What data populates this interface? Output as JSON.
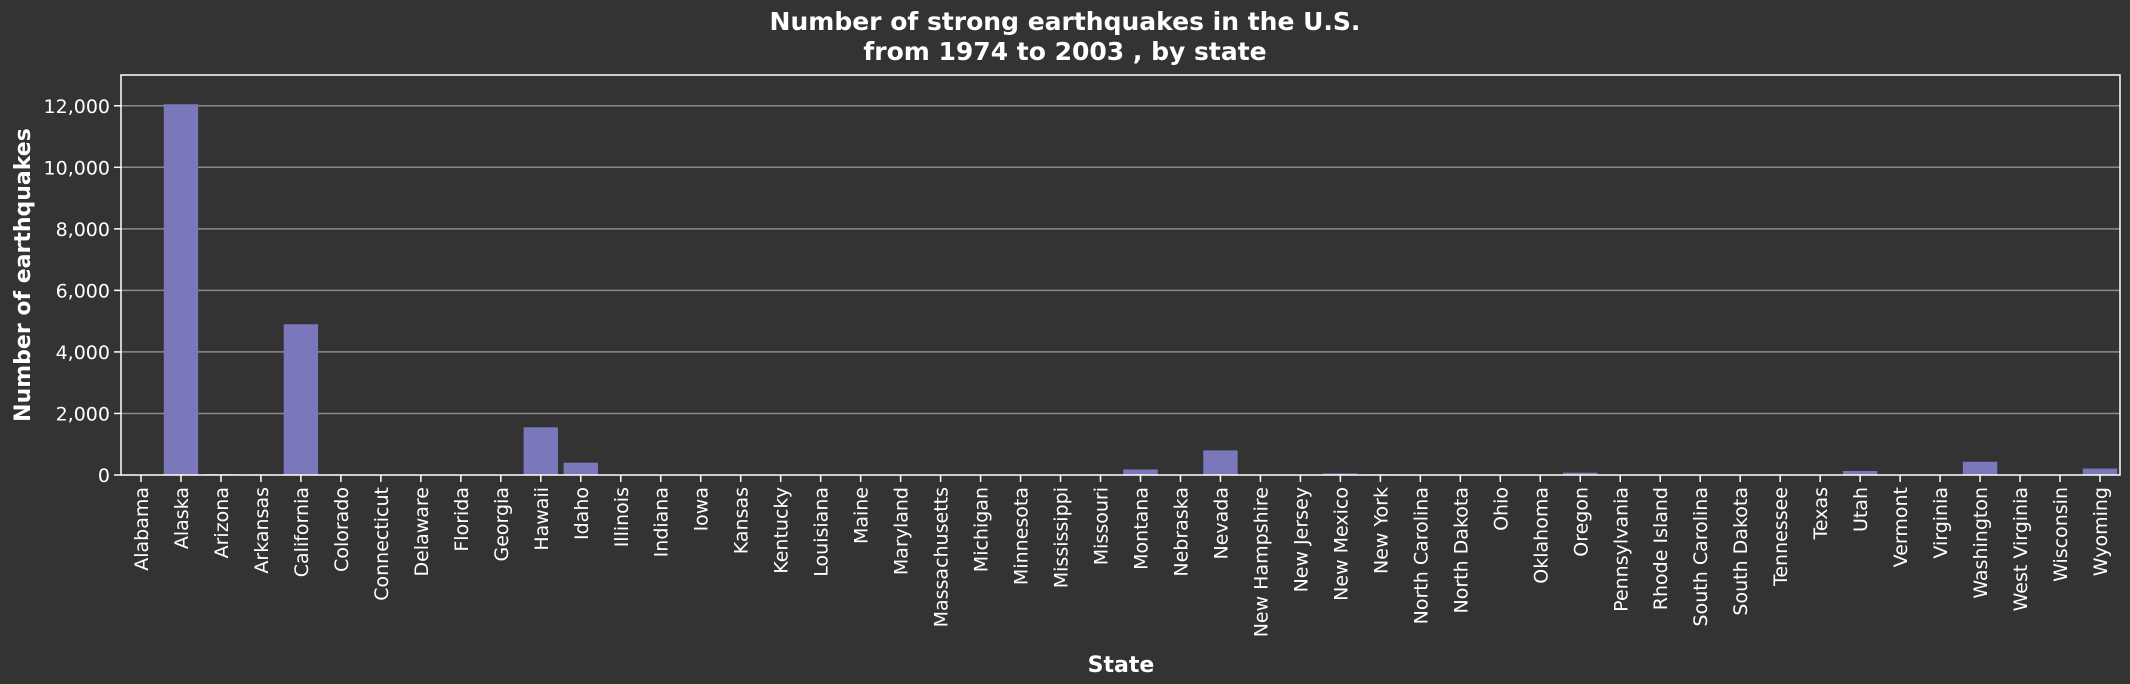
{
  "chart_data": {
    "type": "bar",
    "title": "Number of strong earthquakes in the U.S. from 1974 to 2003 , by state",
    "title_lines": [
      "Number of strong earthquakes in the U.S.",
      "from 1974 to 2003 , by state"
    ],
    "xlabel": "State",
    "ylabel": "Number of earthquakes",
    "ylim": [
      0,
      13000
    ],
    "yticks": [
      0,
      2000,
      4000,
      6000,
      8000,
      10000,
      12000
    ],
    "ytick_labels": [
      "0",
      "2,000",
      "4,000",
      "6,000",
      "8,000",
      "10,000",
      "12,000"
    ],
    "grid": "horizontal",
    "bar_color": "#7b77bb",
    "background_color": "#333333",
    "categories": [
      "Alabama",
      "Alaska",
      "Arizona",
      "Arkansas",
      "California",
      "Colorado",
      "Connecticut",
      "Delaware",
      "Florida",
      "Georgia",
      "Hawaii",
      "Idaho",
      "Illinois",
      "Indiana",
      "Iowa",
      "Kansas",
      "Kentucky",
      "Louisiana",
      "Maine",
      "Maryland",
      "Massachusetts",
      "Michigan",
      "Minnesota",
      "Mississippi",
      "Missouri",
      "Montana",
      "Nebraska",
      "Nevada",
      "New Hampshire",
      "New Jersey",
      "New Mexico",
      "New York",
      "North Carolina",
      "North Dakota",
      "Ohio",
      "Oklahoma",
      "Oregon",
      "Pennsylvania",
      "Rhode Island",
      "South Carolina",
      "South Dakota",
      "Tennessee",
      "Texas",
      "Utah",
      "Vermont",
      "Virginia",
      "Washington",
      "West Virginia",
      "Wisconsin",
      "Wyoming"
    ],
    "values": [
      15,
      12050,
      30,
      20,
      4900,
      20,
      3,
      0,
      3,
      3,
      1550,
      400,
      10,
      3,
      1,
      5,
      10,
      3,
      15,
      1,
      3,
      1,
      1,
      1,
      20,
      180,
      5,
      800,
      5,
      3,
      50,
      25,
      3,
      1,
      10,
      15,
      75,
      5,
      1,
      15,
      5,
      20,
      15,
      130,
      3,
      5,
      430,
      3,
      1,
      210
    ]
  }
}
